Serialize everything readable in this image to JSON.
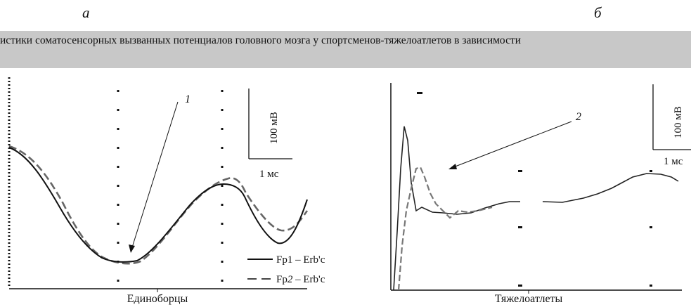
{
  "panels": {
    "a": {
      "letter": "а",
      "group_label": "Единоборцы",
      "arrow_label": "1",
      "scale_v": "100 мВ",
      "scale_t": "1 мс"
    },
    "b": {
      "letter": "б",
      "group_label": "Тяжелоатлеты",
      "arrow_label": "2",
      "scale_v": "100 мВ",
      "scale_t": "1 мс"
    }
  },
  "caption": "истики соматосенсорных вызванных потенциалов головного мозга у спортсменов-тяжелоатлетов в зависимости",
  "legend": {
    "solid": {
      "label": "Fp1 – Erb'c",
      "style": "solid"
    },
    "dashed": {
      "prefix": "Fp",
      "italic_digit": "2",
      "suffix": " – Erb'c",
      "style": "dashed"
    }
  },
  "colors": {
    "caption_band": "#c8c8c8",
    "trace": "#111111",
    "dashed_trace": "#666666"
  }
}
